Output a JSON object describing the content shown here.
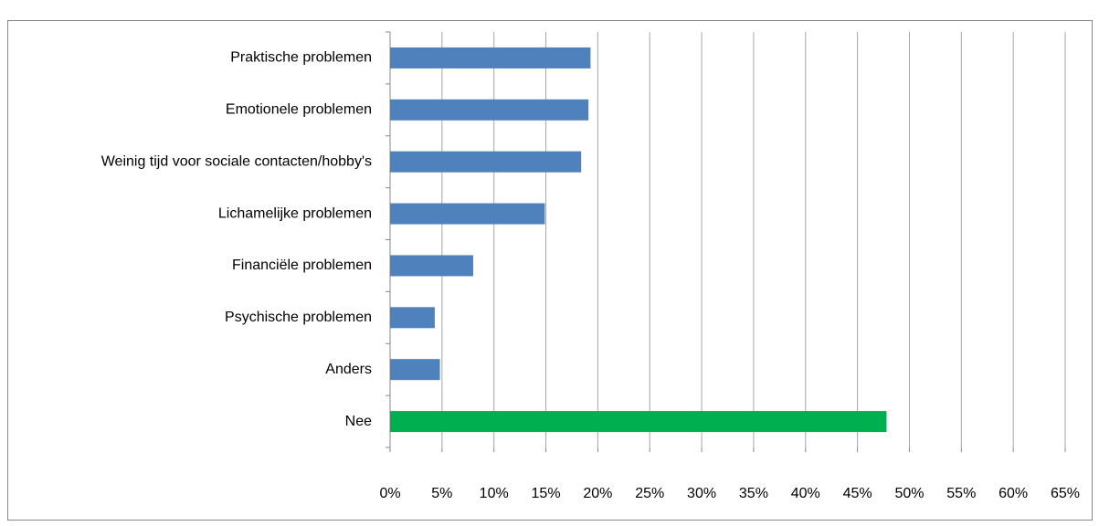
{
  "chart_data": {
    "type": "hbar",
    "categories": [
      "Praktische problemen",
      "Emotionele problemen",
      "Weinig tijd voor sociale contacten/hobby's",
      "Lichamelijke problemen",
      "Financiële problemen",
      "Psychische problemen",
      "Anders",
      "Nee"
    ],
    "values": [
      19.3,
      19.1,
      18.4,
      14.9,
      8.0,
      4.3,
      4.8,
      47.8
    ],
    "colors": [
      "#4f81bd",
      "#4f81bd",
      "#4f81bd",
      "#4f81bd",
      "#4f81bd",
      "#4f81bd",
      "#4f81bd",
      "#00b050"
    ],
    "xlim": [
      0,
      65
    ],
    "xticks": [
      {
        "value": 0,
        "label": "0%"
      },
      {
        "value": 5,
        "label": "5%"
      },
      {
        "value": 10,
        "label": "10%"
      },
      {
        "value": 15,
        "label": "15%"
      },
      {
        "value": 20,
        "label": "20%"
      },
      {
        "value": 25,
        "label": "25%"
      },
      {
        "value": 30,
        "label": "30%"
      },
      {
        "value": 35,
        "label": "35%"
      },
      {
        "value": 40,
        "label": "40%"
      },
      {
        "value": 45,
        "label": "45%"
      },
      {
        "value": 50,
        "label": "50%"
      },
      {
        "value": 55,
        "label": "55%"
      },
      {
        "value": 60,
        "label": "60%"
      },
      {
        "value": 65,
        "label": "65%"
      }
    ],
    "grid": true
  }
}
